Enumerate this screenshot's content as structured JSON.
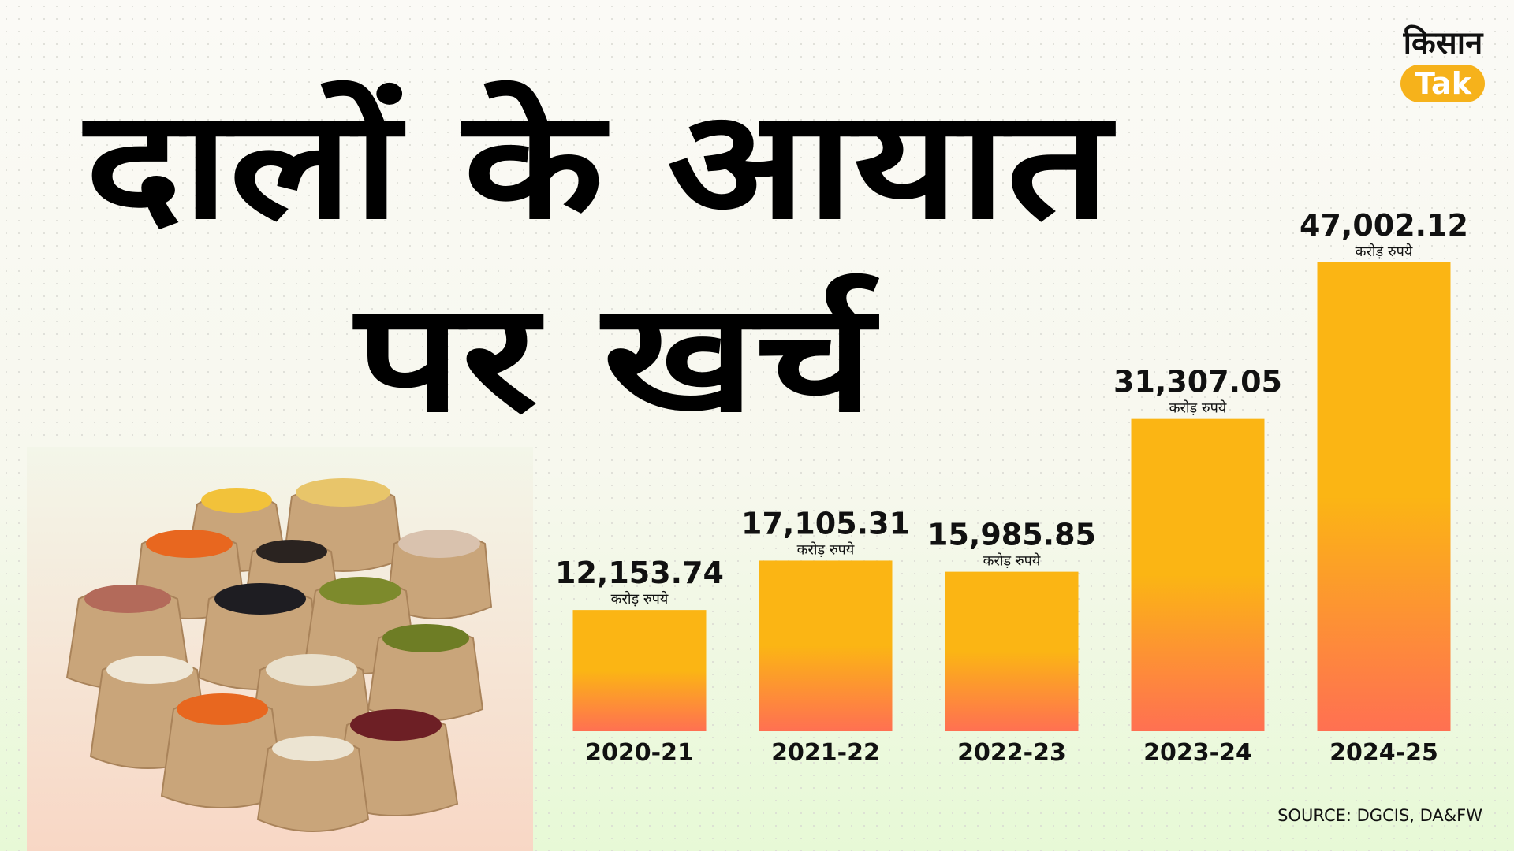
{
  "chart_data": {
    "type": "bar",
    "title": [
      "दालों के आयात",
      "पर खर्च"
    ],
    "categories": [
      "2020-21",
      "2021-22",
      "2022-23",
      "2023-24",
      "2024-25"
    ],
    "values": [
      12153.74,
      17105.31,
      15985.85,
      31307.05,
      47002.12
    ],
    "value_labels": [
      "12,153.74",
      "17,105.31",
      "15,985.85",
      "31,307.05",
      "47,002.12"
    ],
    "unit": "करोड़ रुपये",
    "color": [
      "#fbb514",
      "#ff7052"
    ],
    "ylim": [
      0,
      50000
    ],
    "source": "SOURCE: DGCIS, DA&FW",
    "logo": {
      "top": "किसान",
      "bottom": "Tak"
    }
  }
}
